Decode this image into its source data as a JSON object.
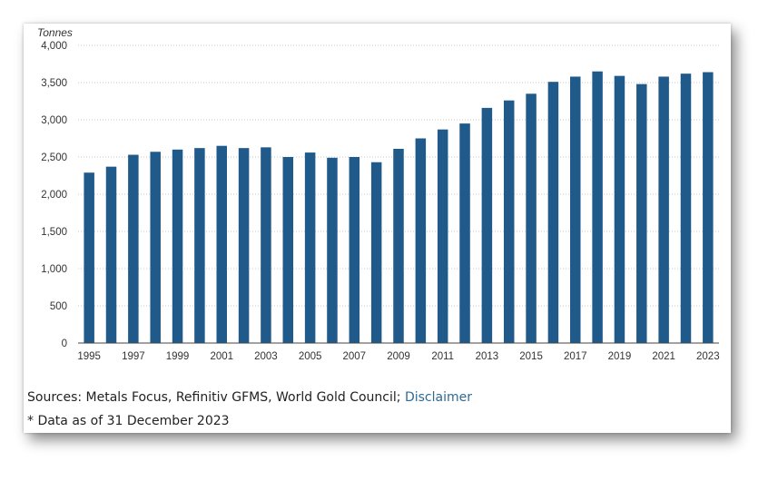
{
  "chart_data": {
    "type": "bar",
    "y_unit_label": "Tonnes",
    "ylim": [
      0,
      4000
    ],
    "y_ticks": [
      0,
      500,
      1000,
      1500,
      2000,
      2500,
      3000,
      3500,
      4000
    ],
    "y_tick_labels": [
      "0",
      "500",
      "1,000",
      "1,500",
      "2,000",
      "2,500",
      "3,000",
      "3,500",
      "4,000"
    ],
    "grid": true,
    "bar_color": "#1f5a8b",
    "categories": [
      "1995",
      "1996",
      "1997",
      "1998",
      "1999",
      "2000",
      "2001",
      "2002",
      "2003",
      "2004",
      "2005",
      "2006",
      "2007",
      "2008",
      "2009",
      "2010",
      "2011",
      "2012",
      "2013",
      "2014",
      "2015",
      "2016",
      "2017",
      "2018",
      "2019",
      "2020",
      "2021",
      "2022",
      "2023"
    ],
    "x_tick_labels": [
      "1995",
      "1997",
      "1999",
      "2001",
      "2003",
      "2005",
      "2007",
      "2009",
      "2011",
      "2013",
      "2015",
      "2017",
      "2019",
      "2021",
      "2023"
    ],
    "values": [
      2290,
      2370,
      2530,
      2570,
      2600,
      2620,
      2650,
      2620,
      2630,
      2500,
      2560,
      2490,
      2500,
      2430,
      2610,
      2750,
      2870,
      2950,
      3160,
      3260,
      3350,
      3510,
      3580,
      3650,
      3590,
      3480,
      3580,
      3620,
      3640
    ]
  },
  "footer": {
    "sources_text": "Sources: Metals Focus, Refinitiv GFMS, World Gold Council; ",
    "disclaimer_link": "Disclaimer",
    "as_of": "* Data as of 31 December 2023"
  }
}
